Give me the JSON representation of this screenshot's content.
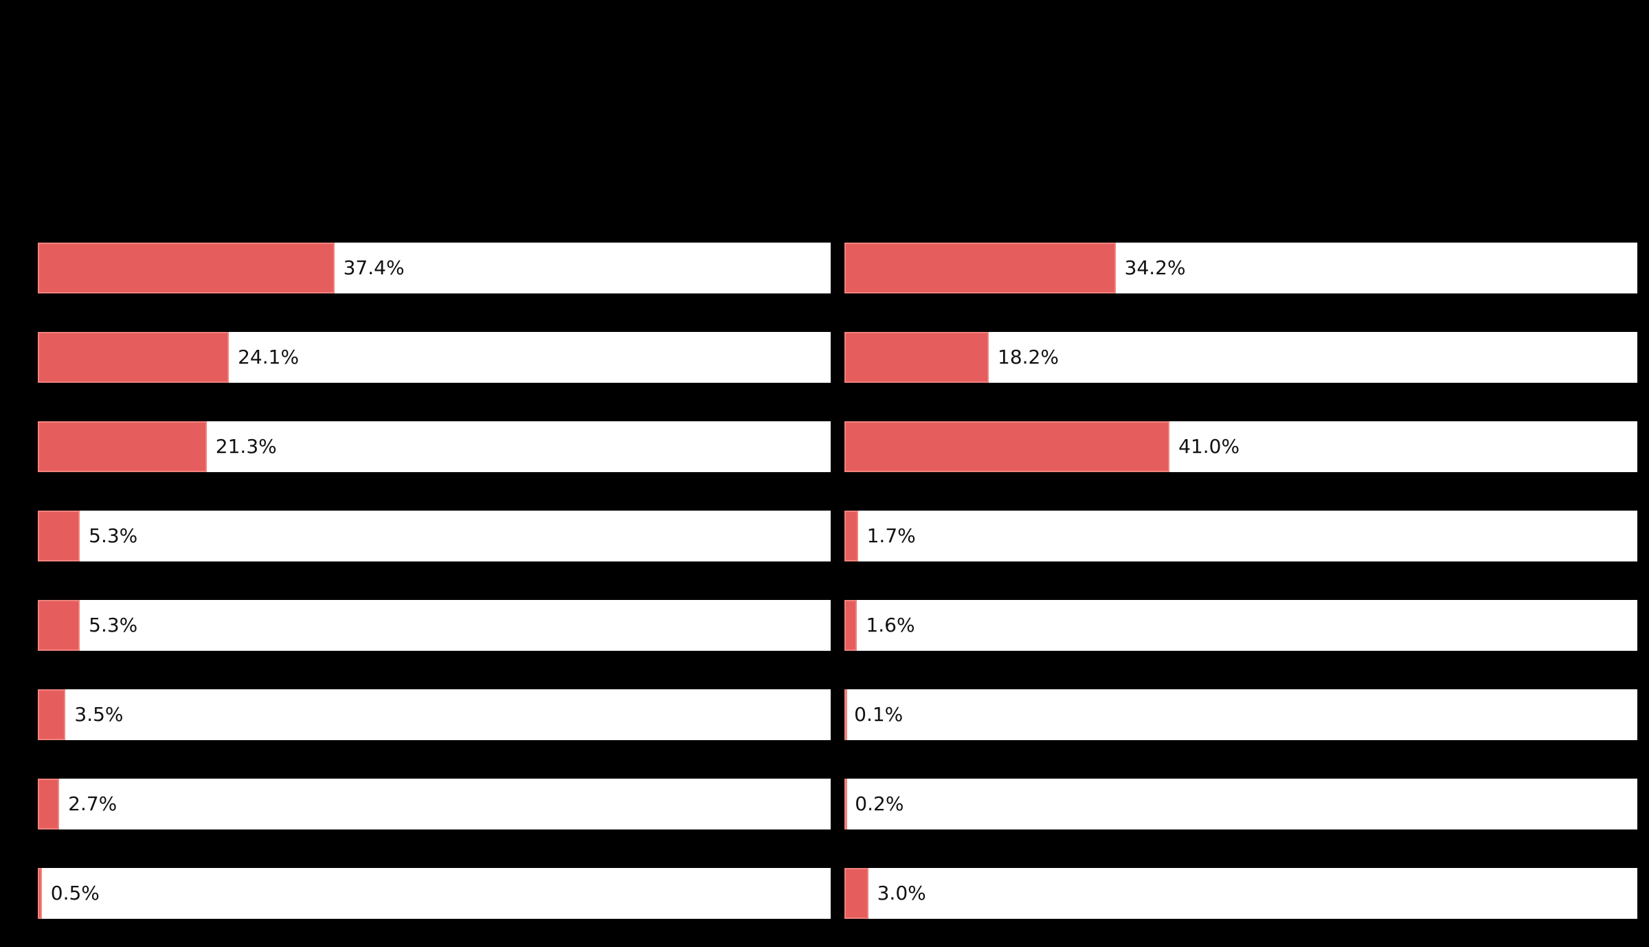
{
  "chart_data": {
    "type": "bar",
    "orientation": "horizontal",
    "value_unit": "percent",
    "axis_range": [
      0,
      100
    ],
    "grid": false,
    "legend": false,
    "background_color": "#000000",
    "bar_fill_color": "#e55d5c",
    "bar_edge_color": "#f2837d",
    "bar_track_color": "#ffffff",
    "value_label_color": "#111111",
    "panels": [
      {
        "side": "left",
        "values": [
          37.4,
          24.1,
          21.3,
          5.3,
          5.3,
          3.5,
          2.7,
          0.5
        ],
        "value_labels": [
          "37.4%",
          "24.1%",
          "21.3%",
          "5.3%",
          "5.3%",
          "3.5%",
          "2.7%",
          "0.5%"
        ]
      },
      {
        "side": "right",
        "values": [
          34.2,
          18.2,
          41.0,
          1.7,
          1.6,
          0.1,
          0.2,
          3.0
        ],
        "value_labels": [
          "34.2%",
          "18.2%",
          "41.0%",
          "1.7%",
          "1.6%",
          "0.1%",
          "0.2%",
          "3.0%"
        ]
      }
    ]
  }
}
